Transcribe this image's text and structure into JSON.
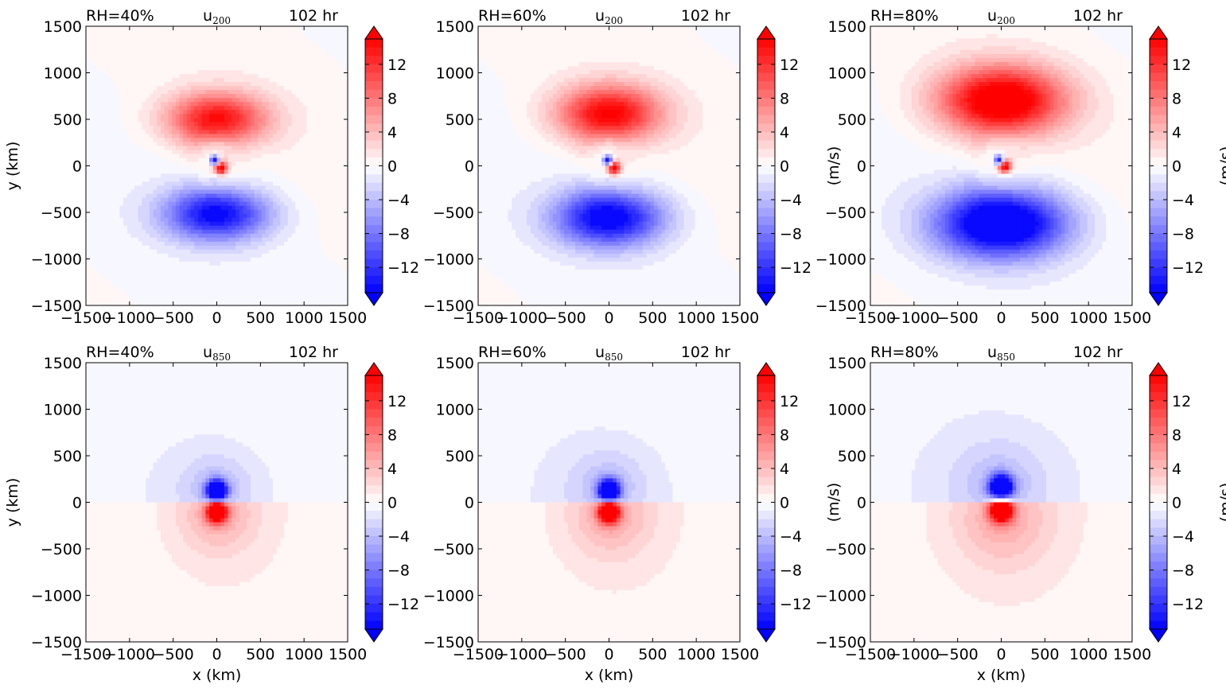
{
  "chart_data": [
    {
      "type": "heatmap",
      "field": "u",
      "level_subscript": "200",
      "title_left": "RH=40%",
      "title_right": "102 hr",
      "ylabel": "y (km)",
      "xlabel": "",
      "colorbar_label": "",
      "xlim": [
        -1500,
        1500
      ],
      "ylim": [
        -1500,
        1500
      ],
      "xticks": [
        "−1500",
        "−1000",
        "−500",
        "0",
        "500",
        "1000",
        "1500"
      ],
      "yticks": [
        "1500",
        "1000",
        "500",
        "0",
        "−500",
        "−1000",
        "−1500"
      ],
      "pattern": {
        "kind": "dipole",
        "upper_sign": 1,
        "upper_center": [
          0,
          500
        ],
        "lower_center": [
          0,
          -520
        ],
        "ring_width": 280,
        "spread": 560,
        "inner_pos": [
          50,
          -30
        ],
        "inner_neg": [
          -20,
          60
        ],
        "max_abs": 14
      }
    },
    {
      "type": "heatmap",
      "field": "u",
      "level_subscript": "200",
      "title_left": "RH=60%",
      "title_right": "102 hr",
      "ylabel": "",
      "xlabel": "",
      "colorbar_label": "(m/s)",
      "xlim": [
        -1500,
        1500
      ],
      "ylim": [
        -1500,
        1500
      ],
      "xticks": [
        "−1500",
        "−1000",
        "−500",
        "0",
        "500",
        "1000",
        "1500"
      ],
      "yticks": [
        "1500",
        "1000",
        "500",
        "0",
        "−500",
        "−1000",
        "−1500"
      ],
      "pattern": {
        "kind": "dipole",
        "upper_sign": 1,
        "upper_center": [
          0,
          560
        ],
        "lower_center": [
          0,
          -560
        ],
        "ring_width": 300,
        "spread": 580,
        "inner_pos": [
          60,
          -30
        ],
        "inner_neg": [
          -10,
          60
        ],
        "max_abs": 15
      }
    },
    {
      "type": "heatmap",
      "field": "u",
      "level_subscript": "200",
      "title_left": "RH=80%",
      "title_right": "102 hr",
      "ylabel": "",
      "xlabel": "",
      "colorbar_label": "(m/s)",
      "xlim": [
        -1500,
        1500
      ],
      "ylim": [
        -1500,
        1500
      ],
      "xticks": [
        "−1500",
        "−1000",
        "−500",
        "0",
        "500",
        "1000",
        "1500"
      ],
      "yticks": [
        "1500",
        "1000",
        "500",
        "0",
        "−500",
        "−1000",
        "−1500"
      ],
      "pattern": {
        "kind": "dipole",
        "upper_sign": 1,
        "upper_center": [
          0,
          700
        ],
        "lower_center": [
          0,
          -620
        ],
        "ring_width": 360,
        "spread": 700,
        "inner_pos": [
          40,
          -10
        ],
        "inner_neg": [
          -20,
          60
        ],
        "max_abs": 18
      }
    },
    {
      "type": "heatmap",
      "field": "u",
      "level_subscript": "850",
      "title_left": "RH=40%",
      "title_right": "102 hr",
      "ylabel": "y (km)",
      "xlabel": "x (km)",
      "colorbar_label": "",
      "xlim": [
        -1500,
        1500
      ],
      "ylim": [
        -1500,
        1500
      ],
      "xticks": [
        "−1500",
        "−1000",
        "−500",
        "0",
        "500",
        "1000",
        "1500"
      ],
      "yticks": [
        "1500",
        "1000",
        "500",
        "0",
        "−500",
        "−1000",
        "−1500"
      ],
      "pattern": {
        "kind": "core",
        "upper_sign": -1,
        "upper_center": [
          0,
          120
        ],
        "lower_center": [
          0,
          -100
        ],
        "core_radius": 110,
        "halo_radius": 480,
        "max_abs": 16
      }
    },
    {
      "type": "heatmap",
      "field": "u",
      "level_subscript": "850",
      "title_left": "RH=60%",
      "title_right": "102 hr",
      "ylabel": "",
      "xlabel": "x (km)",
      "colorbar_label": "(m/s)",
      "xlim": [
        -1500,
        1500
      ],
      "ylim": [
        -1500,
        1500
      ],
      "xticks": [
        "−1500",
        "−1000",
        "−500",
        "0",
        "500",
        "1000",
        "1500"
      ],
      "yticks": [
        "1500",
        "1000",
        "500",
        "0",
        "−500",
        "−1000",
        "−1500"
      ],
      "pattern": {
        "kind": "core",
        "upper_sign": -1,
        "upper_center": [
          0,
          120
        ],
        "lower_center": [
          0,
          -100
        ],
        "core_radius": 115,
        "halo_radius": 520,
        "max_abs": 16
      }
    },
    {
      "type": "heatmap",
      "field": "u",
      "level_subscript": "850",
      "title_left": "RH=80%",
      "title_right": "102 hr",
      "ylabel": "",
      "xlabel": "x (km)",
      "colorbar_label": "(m/s)",
      "xlim": [
        -1500,
        1500
      ],
      "ylim": [
        -1500,
        1500
      ],
      "xticks": [
        "−1500",
        "−1000",
        "−500",
        "0",
        "500",
        "1000",
        "1500"
      ],
      "yticks": [
        "1500",
        "1000",
        "500",
        "0",
        "−500",
        "−1000",
        "−1500"
      ],
      "pattern": {
        "kind": "core",
        "upper_sign": -1,
        "upper_center": [
          0,
          160
        ],
        "lower_center": [
          0,
          -80
        ],
        "core_radius": 125,
        "halo_radius": 620,
        "max_abs": 17
      }
    }
  ],
  "colorbar": {
    "range": [
      -15,
      15
    ],
    "ticks": [
      "12",
      "8",
      "4",
      "0",
      "−4",
      "−8",
      "−12"
    ],
    "tick_values": [
      12,
      8,
      4,
      0,
      -4,
      -8,
      -12
    ],
    "colormap": "bwr",
    "low_color": "#0000ff",
    "mid_color": "#ffffff",
    "high_color": "#ff0000",
    "extend": "both"
  }
}
